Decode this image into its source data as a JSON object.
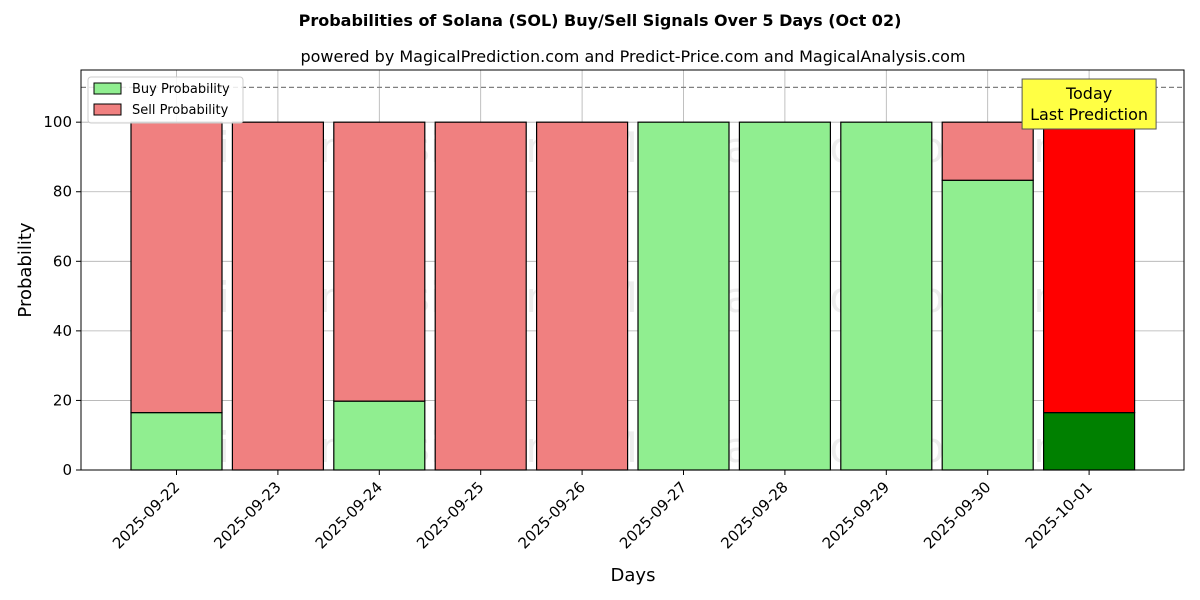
{
  "chart_data": {
    "type": "bar",
    "stacked": true,
    "title": "Probabilities of Solana (SOL) Buy/Sell Signals Over 5 Days (Oct 02)",
    "subtitle": "powered by MagicalPrediction.com and Predict-Price.com and MagicalAnalysis.com",
    "xlabel": "Days",
    "ylabel": "Probability",
    "ylim": [
      0,
      115
    ],
    "yticks": [
      0,
      20,
      40,
      60,
      80,
      100
    ],
    "reference_line": 110,
    "grid": true,
    "legend_position": "top-left",
    "categories": [
      "2025-09-22",
      "2025-09-23",
      "2025-09-24",
      "2025-09-25",
      "2025-09-26",
      "2025-09-27",
      "2025-09-28",
      "2025-09-29",
      "2025-09-30",
      "2025-10-01"
    ],
    "series": [
      {
        "name": "Buy Probability",
        "color": "#90ee90",
        "highlight_color": "#008000",
        "values": [
          16.5,
          0,
          19.8,
          0,
          0,
          100,
          100,
          100,
          83.3,
          16.5
        ]
      },
      {
        "name": "Sell Probability",
        "color": "#f08080",
        "highlight_color": "#ff0000",
        "values": [
          83.5,
          100,
          80.2,
          100,
          100,
          0,
          0,
          0,
          16.7,
          83.5
        ]
      }
    ],
    "highlight_index": 9,
    "annotation": {
      "lines": [
        "Today",
        "Last Prediction"
      ],
      "background": "#ffff44"
    },
    "watermarks": [
      "MagicalAnalysis.com",
      "MagicalPrediction.com"
    ]
  }
}
